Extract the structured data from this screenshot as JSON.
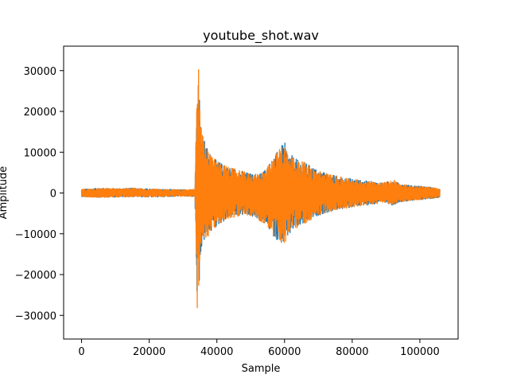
{
  "chart_data": {
    "type": "line",
    "title": "youtube_shot.wav",
    "xlabel": "Sample",
    "ylabel": "Amplitude",
    "xlim": [
      -5300,
      111300
    ],
    "ylim": [
      -35800,
      36000
    ],
    "xticks": [
      0,
      20000,
      40000,
      60000,
      80000,
      100000
    ],
    "xtick_labels": [
      "0",
      "20000",
      "40000",
      "60000",
      "80000",
      "100000"
    ],
    "yticks": [
      -30000,
      -20000,
      -10000,
      0,
      10000,
      20000,
      30000
    ],
    "ytick_labels": [
      "−30000",
      "−20000",
      "−10000",
      "0",
      "10000",
      "20000",
      "30000"
    ],
    "grid": false,
    "series_colors": [
      "#1f77b4",
      "#ff7f0e"
    ],
    "series": [
      {
        "description_only": false,
        "envelope_x": [
          0,
          5000,
          10000,
          15000,
          20000,
          25000,
          30000,
          33500,
          34000,
          34300,
          34700,
          35000,
          35500,
          36500,
          37500,
          39000,
          41000,
          43000,
          45000,
          47000,
          49000,
          51000,
          53000,
          55000,
          57000,
          58500,
          60000,
          61000,
          62500,
          64000,
          66000,
          68000,
          70000,
          72000,
          74000,
          76000,
          78000,
          80000,
          82000,
          84000,
          86000,
          88000,
          90000,
          92000,
          94000,
          96000,
          98000,
          100000,
          102000,
          104000,
          105900
        ],
        "envelope_upper": [
          900,
          1200,
          1100,
          1200,
          1000,
          900,
          800,
          900,
          21000,
          33000,
          31000,
          20000,
          15000,
          12500,
          10500,
          8500,
          7500,
          6500,
          6000,
          5500,
          5000,
          4500,
          5000,
          6500,
          9000,
          11000,
          12500,
          10000,
          9000,
          8000,
          7500,
          6500,
          5500,
          5000,
          4500,
          4000,
          3800,
          3500,
          3200,
          3000,
          2800,
          2600,
          2600,
          3500,
          2200,
          2000,
          1800,
          1700,
          1500,
          1300,
          1000
        ],
        "envelope_lower": [
          -900,
          -1100,
          -1000,
          -900,
          -1000,
          -900,
          -800,
          -900,
          -22000,
          -32800,
          -30000,
          -19000,
          -14000,
          -11500,
          -10500,
          -9000,
          -7500,
          -6500,
          -6000,
          -5500,
          -5500,
          -6000,
          -7000,
          -8500,
          -11000,
          -12000,
          -12800,
          -11000,
          -9500,
          -8500,
          -7500,
          -6500,
          -5500,
          -5000,
          -4500,
          -4000,
          -3800,
          -3500,
          -3200,
          -3000,
          -2800,
          -2600,
          -2400,
          -3000,
          -2200,
          -2000,
          -1800,
          -1700,
          -1500,
          -1300,
          -1000
        ]
      }
    ]
  }
}
